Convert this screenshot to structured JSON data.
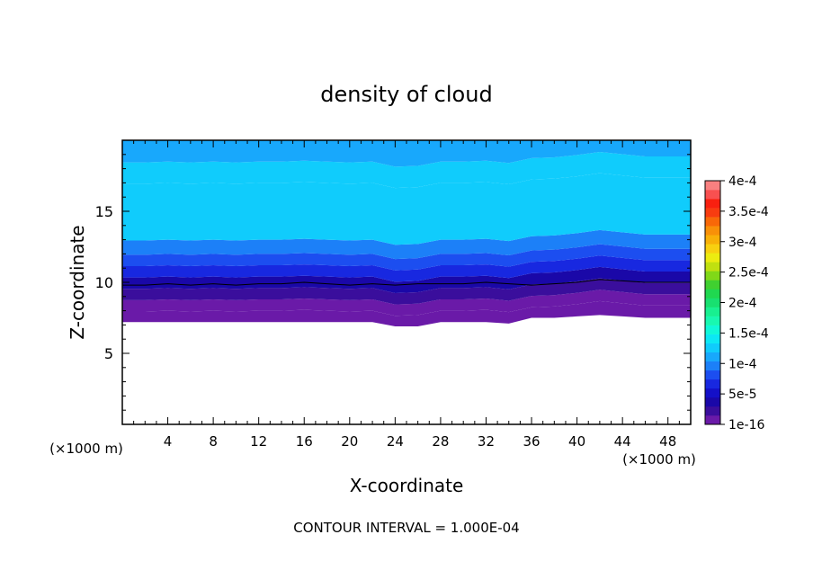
{
  "chart_data": {
    "type": "heatmap",
    "title": "density of cloud",
    "xlabel": "X-coordinate",
    "ylabel": "Z-coordinate",
    "x_unit_label": "(×1000 m)",
    "x_unit_label_right": "(×1000 m)",
    "footer": "CONTOUR INTERVAL = 1.000E-04",
    "xlim": [
      0,
      50
    ],
    "ylim": [
      0,
      20
    ],
    "x_ticks": [
      4,
      8,
      12,
      16,
      20,
      24,
      28,
      32,
      36,
      40,
      44,
      48
    ],
    "y_ticks": [
      5,
      10,
      15
    ],
    "contour_line_level": 1e-16,
    "colorbar": {
      "range": [
        1e-16,
        0.0004
      ],
      "labels": [
        "1e-16",
        "5e-5",
        "1e-4",
        "1.5e-4",
        "2e-4",
        "2.5e-4",
        "3e-4",
        "3.5e-4",
        "4e-4"
      ],
      "label_values": [
        0,
        5e-05,
        0.0001,
        0.00015,
        0.0002,
        0.00025,
        0.0003,
        0.00035,
        0.0004
      ],
      "colors": [
        "#6a1aa8",
        "#3a0e9c",
        "#1a08a8",
        "#1410c8",
        "#1828e0",
        "#1c4ef0",
        "#1c80f8",
        "#18a8fc",
        "#10ccfc",
        "#0ce8f4",
        "#10f8d8",
        "#18f8b0",
        "#18f090",
        "#18e070",
        "#20d850",
        "#40d030",
        "#80d818",
        "#c0e010",
        "#ecec10",
        "#f8d010",
        "#f8b008",
        "#f89008",
        "#f86808",
        "#f83c10",
        "#f82010",
        "#f85050",
        "#f88080"
      ]
    },
    "field": {
      "x": [
        0,
        2,
        4,
        6,
        8,
        10,
        12,
        14,
        16,
        18,
        20,
        22,
        24,
        26,
        28,
        30,
        32,
        34,
        36,
        38,
        40,
        42,
        44,
        46,
        48,
        50
      ],
      "cloud_base_z": [
        7.2,
        7.2,
        7.2,
        7.2,
        7.2,
        7.2,
        7.2,
        7.2,
        7.2,
        7.2,
        7.2,
        7.2,
        6.9,
        6.9,
        7.2,
        7.2,
        7.2,
        7.1,
        7.5,
        7.5,
        7.6,
        7.7,
        7.6,
        7.5,
        7.5,
        7.5
      ],
      "contour_z": [
        9.8,
        9.8,
        9.9,
        9.8,
        9.9,
        9.8,
        9.9,
        9.9,
        10.0,
        9.9,
        9.8,
        9.9,
        9.8,
        9.9,
        9.9,
        9.9,
        10.0,
        9.9,
        9.8,
        9.9,
        10.0,
        10.2,
        10.1,
        10.0,
        10.0,
        10.0
      ],
      "cloud_top_z": 20,
      "levels_z": [
        7.2,
        8.0,
        8.8,
        9.6,
        10.4,
        11.2,
        12.0,
        13.0,
        17.0,
        18.5,
        20.0
      ],
      "level_values": [
        1e-16,
        5e-06,
        2e-05,
        4e-05,
        6e-05,
        8e-05,
        0.0001,
        0.00012,
        0.00013,
        0.000115,
        0.000105
      ]
    }
  }
}
